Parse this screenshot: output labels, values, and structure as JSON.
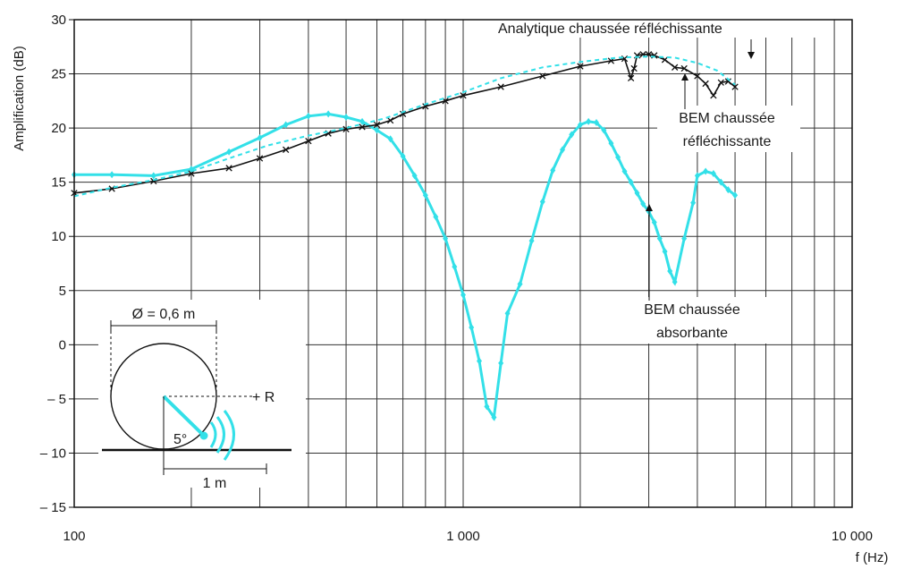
{
  "chart_data": {
    "type": "line",
    "title": "",
    "xlabel": "f (Hz)",
    "ylabel": "Amplification (dB)",
    "xscale": "log",
    "xlim": [
      100,
      10000
    ],
    "ylim": [
      -15,
      30
    ],
    "x_ticks": [
      100,
      1000,
      10000
    ],
    "x_tick_labels": [
      "100",
      "1 000",
      "10 000"
    ],
    "y_ticks": [
      30,
      25,
      20,
      15,
      10,
      5,
      0,
      -5,
      -10,
      -15
    ],
    "y_tick_labels": [
      "30",
      "25",
      "20",
      "15",
      "10",
      "5",
      "0",
      "– 5",
      "– 10",
      "– 15"
    ],
    "grid": true,
    "colors": {
      "absorbing": "#33e0e8",
      "analytic": "#33e0e8",
      "reflecting": "#111111",
      "grid": "#333333"
    },
    "series": [
      {
        "key": "analytic",
        "style": "dashed",
        "x": [
          100,
          125,
          160,
          200,
          250,
          315,
          400,
          500,
          630,
          800,
          1000,
          1250,
          1600,
          2000,
          2500,
          3000,
          3500,
          4000,
          4500,
          5000
        ],
        "y": [
          13.7,
          14.5,
          15.2,
          16.0,
          17.2,
          18.4,
          19.3,
          20.0,
          20.9,
          22.2,
          23.3,
          24.6,
          25.6,
          26.1,
          26.5,
          26.6,
          26.5,
          26.0,
          25.3,
          24.0
        ]
      },
      {
        "key": "reflecting",
        "style": "x-markers",
        "x": [
          100,
          125,
          160,
          200,
          250,
          300,
          350,
          400,
          450,
          500,
          550,
          600,
          650,
          700,
          800,
          900,
          1000,
          1250,
          1600,
          2000,
          2400,
          2600,
          2700,
          2750,
          2800,
          2900,
          3000,
          3100,
          3300,
          3500,
          3700,
          4000,
          4200,
          4400,
          4600,
          4800,
          5000
        ],
        "y": [
          14.0,
          14.4,
          15.1,
          15.8,
          16.3,
          17.2,
          18.0,
          18.8,
          19.5,
          19.9,
          20.1,
          20.3,
          20.7,
          21.3,
          22.0,
          22.5,
          23.0,
          23.8,
          24.8,
          25.7,
          26.2,
          26.4,
          24.6,
          25.5,
          26.7,
          26.8,
          26.8,
          26.7,
          26.3,
          25.6,
          25.5,
          24.8,
          24.1,
          23.0,
          24.2,
          24.3,
          23.8
        ]
      },
      {
        "key": "absorbing",
        "style": "diamond-markers",
        "x": [
          100,
          125,
          160,
          200,
          250,
          300,
          350,
          400,
          450,
          500,
          550,
          600,
          650,
          700,
          750,
          800,
          850,
          900,
          950,
          1000,
          1050,
          1100,
          1150,
          1200,
          1250,
          1300,
          1400,
          1500,
          1600,
          1700,
          1800,
          1900,
          2000,
          2100,
          2200,
          2300,
          2400,
          2500,
          2600,
          2700,
          2800,
          2900,
          3000,
          3100,
          3200,
          3300,
          3400,
          3500,
          3700,
          3900,
          4000,
          4200,
          4400,
          4600,
          4800,
          5000
        ],
        "y": [
          15.7,
          15.7,
          15.6,
          16.2,
          17.8,
          19.1,
          20.3,
          21.1,
          21.3,
          21.0,
          20.6,
          19.8,
          19.0,
          17.4,
          15.6,
          13.8,
          11.8,
          9.8,
          7.2,
          4.6,
          1.6,
          -1.5,
          -5.7,
          -6.7,
          -1.7,
          2.9,
          5.6,
          9.6,
          13.2,
          16.1,
          18.0,
          19.4,
          20.3,
          20.6,
          20.5,
          19.8,
          18.6,
          17.3,
          16.0,
          15.0,
          14.0,
          13.0,
          12.3,
          11.3,
          9.8,
          8.6,
          6.8,
          5.8,
          9.8,
          13.1,
          15.6,
          16.0,
          15.8,
          15.0,
          14.3,
          13.8
        ]
      }
    ],
    "annotations": {
      "analytic_label": "Analytique chaussée réfléchissante",
      "bem_reflecting_line1": "BEM chaussée",
      "bem_reflecting_line2": "réfléchissante",
      "bem_absorbing_line1": "BEM chaussée",
      "bem_absorbing_line2": "absorbante"
    },
    "inset": {
      "diameter_label": "Ø = 0,6 m",
      "receiver_label": "+ R",
      "angle_label": "5°",
      "distance_label": "1 m"
    }
  }
}
